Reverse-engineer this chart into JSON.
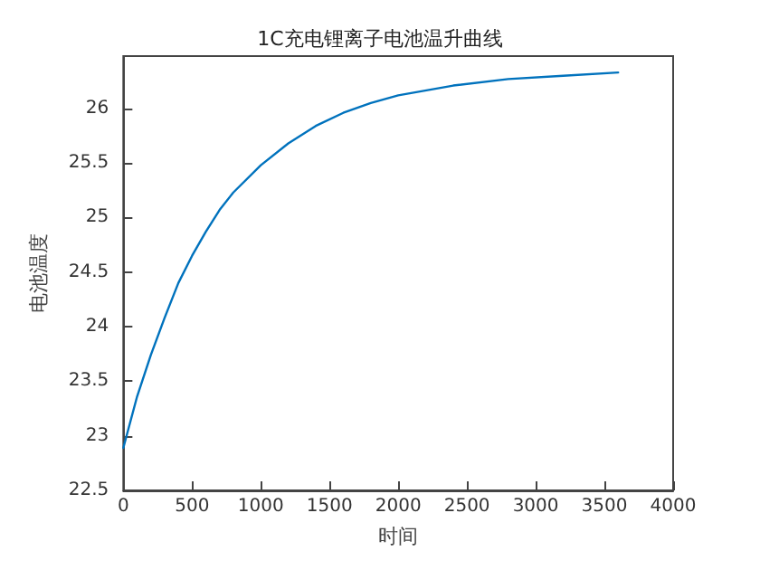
{
  "chart_data": {
    "type": "line",
    "title": "1C充电锂离子电池温升曲线",
    "xlabel": "时间",
    "ylabel": "电池温度",
    "x": [
      0,
      100,
      200,
      300,
      400,
      500,
      600,
      700,
      800,
      1000,
      1200,
      1400,
      1600,
      1800,
      2000,
      2400,
      2800,
      3200,
      3600
    ],
    "series": [
      {
        "color": "#0072bd",
        "values": [
          22.89,
          23.36,
          23.74,
          24.08,
          24.4,
          24.65,
          24.87,
          25.07,
          25.23,
          25.48,
          25.68,
          25.84,
          25.96,
          26.05,
          26.12,
          26.21,
          26.27,
          26.3,
          26.33
        ]
      }
    ],
    "xlim": [
      0,
      4000
    ],
    "xticks": [
      0,
      500,
      1000,
      1500,
      2000,
      2500,
      3000,
      3500,
      4000
    ],
    "ylim": [
      22.5,
      26.48
    ],
    "yticks": [
      22.5,
      23,
      23.5,
      24,
      24.5,
      25,
      25.5,
      26
    ],
    "grid": false,
    "marker": "none",
    "line_style": "solid"
  }
}
